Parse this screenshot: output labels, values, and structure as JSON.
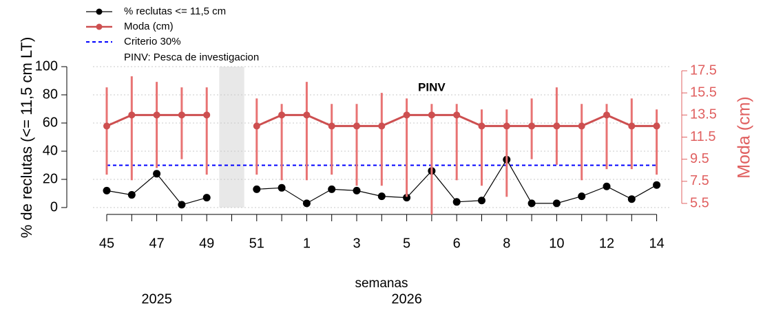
{
  "chart_data": {
    "type": "line",
    "x_label": "semanas",
    "y_label": "% de reclutas (<= 11,5 cm LT)",
    "y2_label": "Moda (cm)",
    "categories": [
      "45",
      null,
      "47",
      null,
      "49",
      null,
      "51",
      null,
      "1",
      null,
      "3",
      null,
      "5",
      null,
      "6",
      null,
      "8",
      null,
      "10",
      null,
      "12",
      null,
      "14"
    ],
    "year_labels": [
      "2025",
      "2026"
    ],
    "ylim": [
      0,
      100
    ],
    "yticks": [
      0,
      20,
      40,
      60,
      80,
      100
    ],
    "y2lim": [
      5.5,
      17.5
    ],
    "y2ticks": [
      5.5,
      7.5,
      9.5,
      11.5,
      13.5,
      15.5,
      17.5
    ],
    "grid": true,
    "shaded_category": 5,
    "series": [
      {
        "name": "% reclutas <= 11,5 cm",
        "color": "#000000",
        "values": [
          12,
          9,
          24,
          2,
          7,
          null,
          13,
          14,
          3,
          13,
          12,
          8,
          7,
          26,
          4,
          5,
          34,
          3,
          3,
          8,
          15,
          6,
          16
        ]
      },
      {
        "name": "Moda (cm)",
        "color": "#cd4f50",
        "axis": "y2",
        "bar_color": "#e87373",
        "values": [
          12.5,
          13.5,
          13.5,
          13.5,
          13.5,
          null,
          12.5,
          13.5,
          13.5,
          12.5,
          12.5,
          12.5,
          13.5,
          13.5,
          13.5,
          12.5,
          12.5,
          12.5,
          12.5,
          12.5,
          13.5,
          12.5,
          12.5
        ],
        "low": [
          8.1,
          7.6,
          8.7,
          9.5,
          8.1,
          null,
          8.1,
          7.6,
          7.6,
          8.1,
          7.1,
          7.1,
          6.1,
          4.5,
          7.6,
          7.1,
          6.1,
          9.5,
          9.0,
          7.6,
          8.6,
          8.6,
          8.1
        ],
        "high": [
          16.0,
          17.0,
          16.5,
          16.0,
          16.0,
          null,
          15.0,
          14.5,
          16.5,
          14.5,
          14.5,
          15.5,
          15.0,
          14.5,
          14.5,
          14.0,
          14.0,
          15.0,
          16.0,
          14.5,
          14.5,
          15.0,
          14.0
        ]
      }
    ],
    "hlines": [
      {
        "name": "Criterio 30%",
        "value": 30,
        "color": "#0000ff"
      }
    ],
    "legend_notes": [
      "PINV: Pesca de investigacion"
    ],
    "annotations": [
      {
        "text": "PINV",
        "category": 13
      }
    ]
  }
}
